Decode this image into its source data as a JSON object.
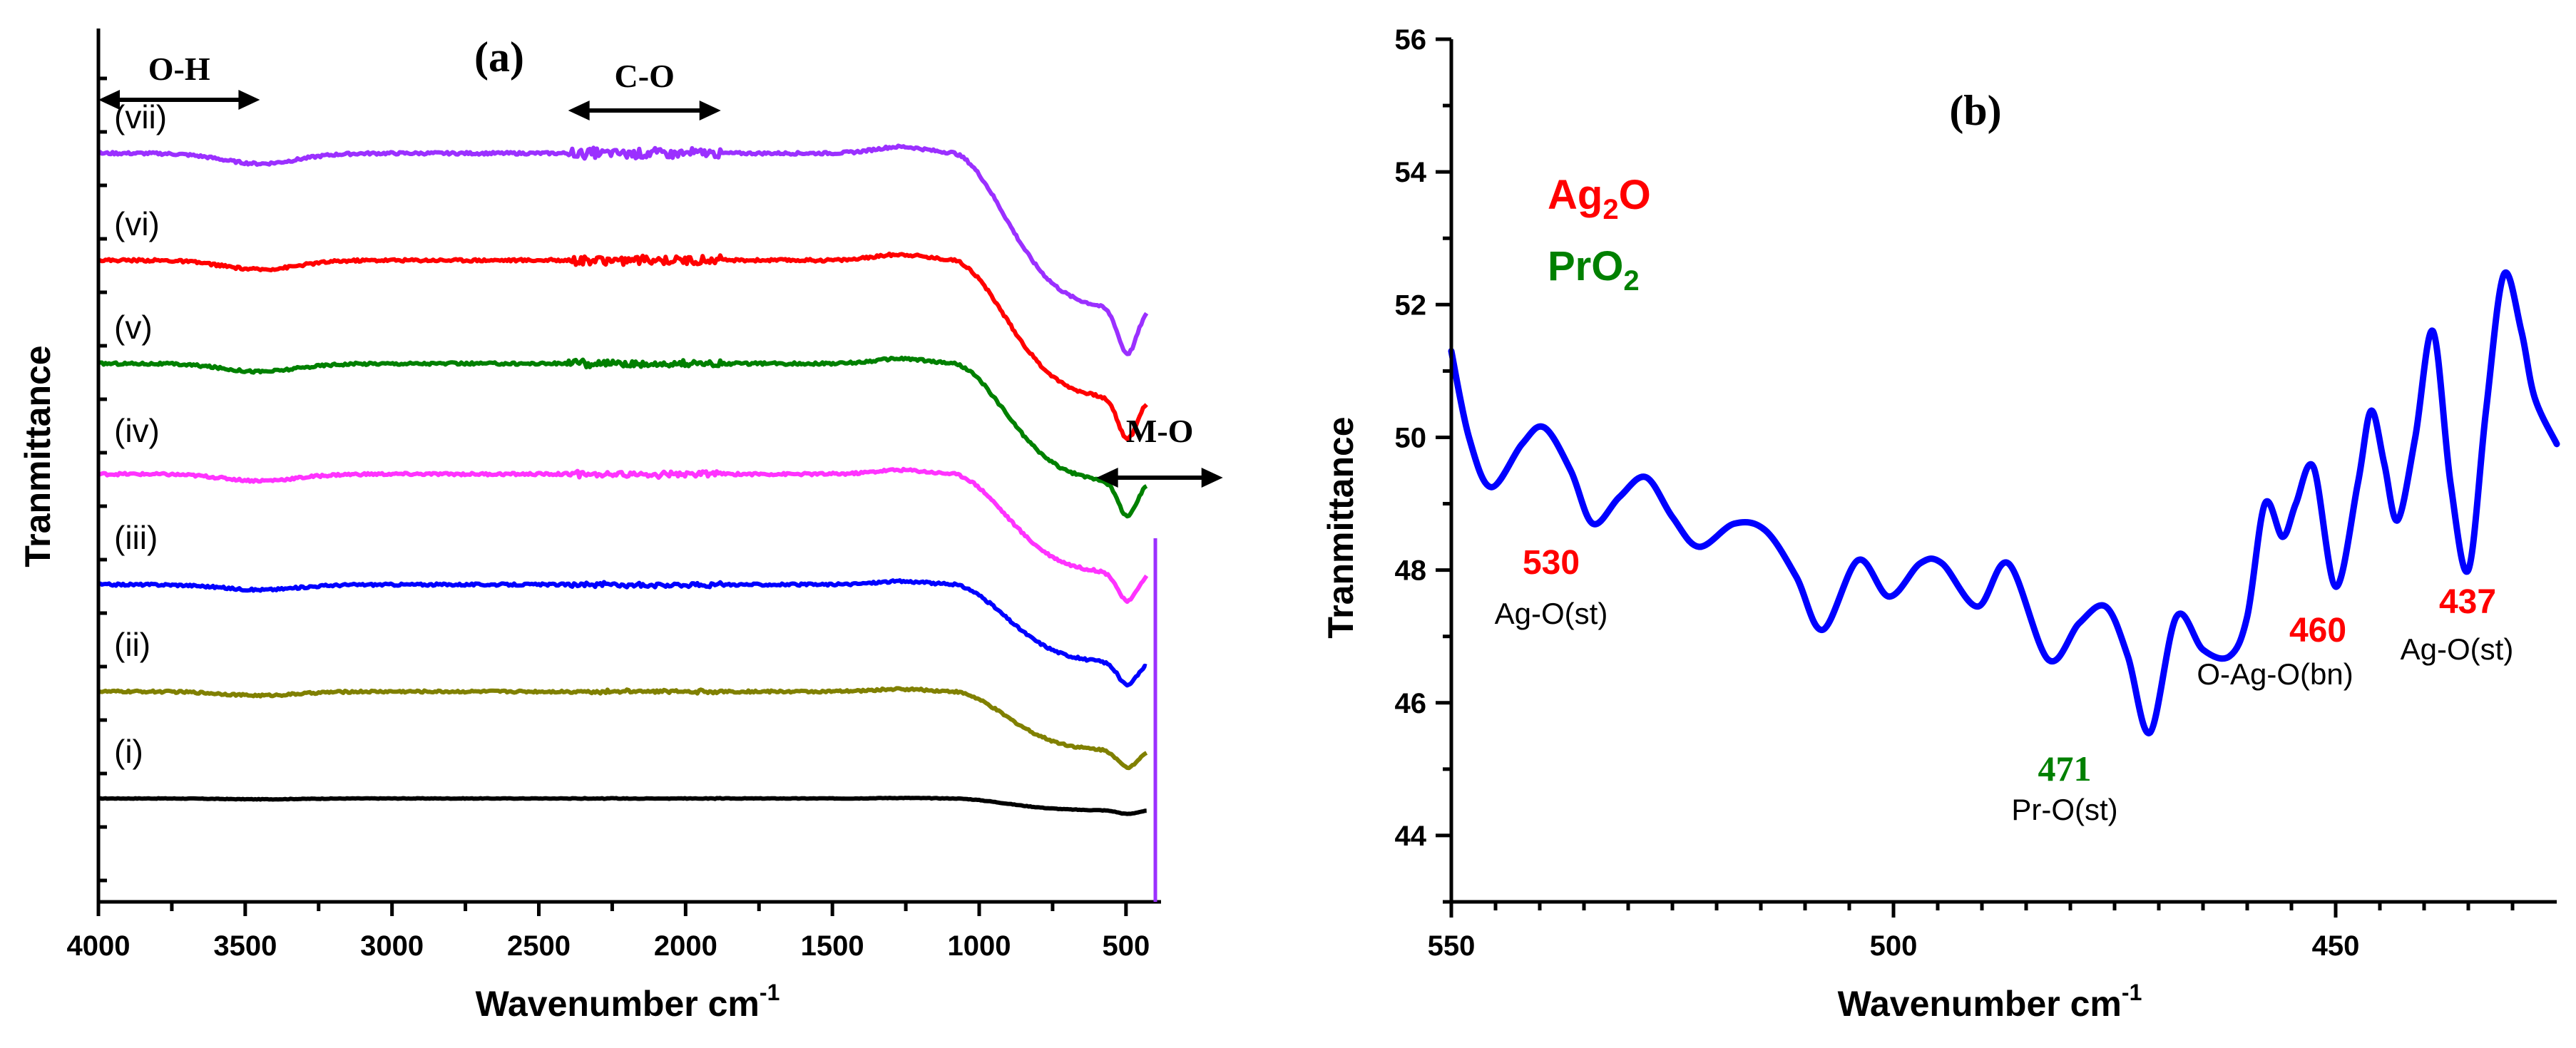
{
  "chart_data": [
    {
      "panel": "(a)",
      "type": "line",
      "xlabel": "Wavenumber cm",
      "xlabel_sup": "-1",
      "ylabel": "Tranmittance",
      "xlim": [
        4000,
        400
      ],
      "x_reversed": true,
      "xticks": [
        4000,
        3500,
        3000,
        2500,
        2000,
        1500,
        1000,
        500
      ],
      "y_ticks_shown": false,
      "band_annotations": [
        {
          "label": "O-H",
          "from": 4000,
          "to": 3450
        },
        {
          "label": "C-O",
          "from": 2400,
          "to": 1880
        },
        {
          "label": "M-O",
          "from": 600,
          "to": 170
        }
      ],
      "series": [
        {
          "name": "(vii)",
          "color": "#9b30ff",
          "offset": 6
        },
        {
          "name": "(vi)",
          "color": "#ff0000",
          "offset": 5
        },
        {
          "name": "(v)",
          "color": "#008000",
          "offset": 4
        },
        {
          "name": "(iv)",
          "color": "#ff33ff",
          "offset": 3
        },
        {
          "name": "(iii)",
          "color": "#0000ff",
          "offset": 2
        },
        {
          "name": "(ii)",
          "color": "#808000",
          "offset": 1
        },
        {
          "name": "(i)",
          "color": "#000000",
          "offset": 0
        }
      ]
    },
    {
      "panel": "(b)",
      "type": "line",
      "xlabel": "Wavenumber cm",
      "xlabel_sup": "-1",
      "ylabel": "Tranmittance",
      "xlim": [
        550,
        425
      ],
      "x_reversed": true,
      "ylim": [
        43,
        56
      ],
      "xticks": [
        550,
        500,
        450
      ],
      "yticks": [
        44,
        46,
        48,
        50,
        52,
        54,
        56
      ],
      "legend": [
        {
          "base": "Ag",
          "sub": "2",
          "tail": "O",
          "color": "#ff0000"
        },
        {
          "base": "PrO",
          "sub": "2",
          "tail": "",
          "color": "#008000"
        }
      ],
      "series": [
        {
          "name": "Ag2O / PrO2",
          "color": "#0000ff",
          "x": [
            550,
            548,
            545.5,
            542,
            539.5,
            536.5,
            534,
            531,
            528,
            525,
            522,
            518,
            514.5,
            511,
            508,
            504,
            500.5,
            497,
            494.5,
            490.5,
            487,
            482.5,
            479,
            476,
            473.5,
            471,
            468,
            465,
            462,
            460,
            458,
            456,
            454.5,
            452.5,
            450,
            447.5,
            446,
            444.5,
            443,
            441,
            439,
            437,
            435,
            433,
            431,
            429,
            427.5,
            425
          ],
          "y": [
            51.3,
            50.0,
            49.25,
            49.9,
            50.15,
            49.5,
            48.7,
            49.1,
            49.4,
            48.8,
            48.35,
            48.7,
            48.6,
            47.9,
            47.1,
            48.15,
            47.6,
            48.1,
            48.1,
            47.45,
            48.1,
            46.65,
            47.2,
            47.45,
            46.7,
            45.55,
            47.3,
            46.8,
            46.7,
            47.3,
            49.0,
            48.5,
            49.0,
            49.55,
            47.75,
            49.3,
            50.4,
            49.6,
            48.75,
            50.0,
            51.6,
            49.3,
            48.0,
            50.4,
            52.45,
            51.6,
            50.6,
            49.9
          ]
        }
      ],
      "annotations": [
        {
          "value": "530",
          "desc": "Ag-O(st)",
          "color": "#ff0000"
        },
        {
          "value": "471",
          "desc": "Pr-O(st)",
          "color": "#008000"
        },
        {
          "value": "460",
          "desc": "O-Ag-O(bn)",
          "color": "#ff0000"
        },
        {
          "value": "437",
          "desc": "Ag-O(st)",
          "color": "#ff0000"
        }
      ]
    }
  ]
}
